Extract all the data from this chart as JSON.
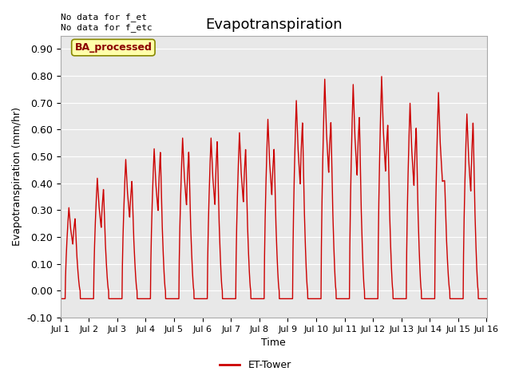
{
  "title": "Evapotranspiration",
  "ylabel": "Evapotranspiration (mm/hr)",
  "xlabel": "Time",
  "xlim_days": [
    1,
    16
  ],
  "ylim": [
    -0.1,
    0.95
  ],
  "yticks": [
    -0.1,
    0.0,
    0.1,
    0.2,
    0.3,
    0.4,
    0.5,
    0.6,
    0.7,
    0.8,
    0.9
  ],
  "xtick_labels": [
    "Jul 1",
    "Jul 2",
    "Jul 3",
    "Jul 4",
    "Jul 5",
    "Jul 6",
    "Jul 7",
    "Jul 8",
    "Jul 9",
    "Jul 10",
    "Jul 11",
    "Jul 12",
    "Jul 13",
    "Jul 14",
    "Jul 15",
    "Jul 16"
  ],
  "line_color": "#cc0000",
  "line_width": 1.0,
  "bg_color": "#e8e8e8",
  "annotation_text": "No data for f_et\nNo data for f_etc",
  "box_label": "BA_processed",
  "box_color": "#ffffaa",
  "box_edge_color": "#888800",
  "legend_label": "ET-Tower",
  "title_fontsize": 13,
  "axis_fontsize": 9,
  "tick_fontsize": 9,
  "night_value": -0.03,
  "day_peaks1": [
    0.31,
    0.42,
    0.49,
    0.53,
    0.57,
    0.57,
    0.59,
    0.64,
    0.71,
    0.79,
    0.77,
    0.8,
    0.7,
    0.74,
    0.66
  ],
  "day_peaks2": [
    0.27,
    0.38,
    0.41,
    0.52,
    0.52,
    0.56,
    0.53,
    0.53,
    0.63,
    0.63,
    0.65,
    0.62,
    0.61,
    0.41,
    0.63
  ]
}
